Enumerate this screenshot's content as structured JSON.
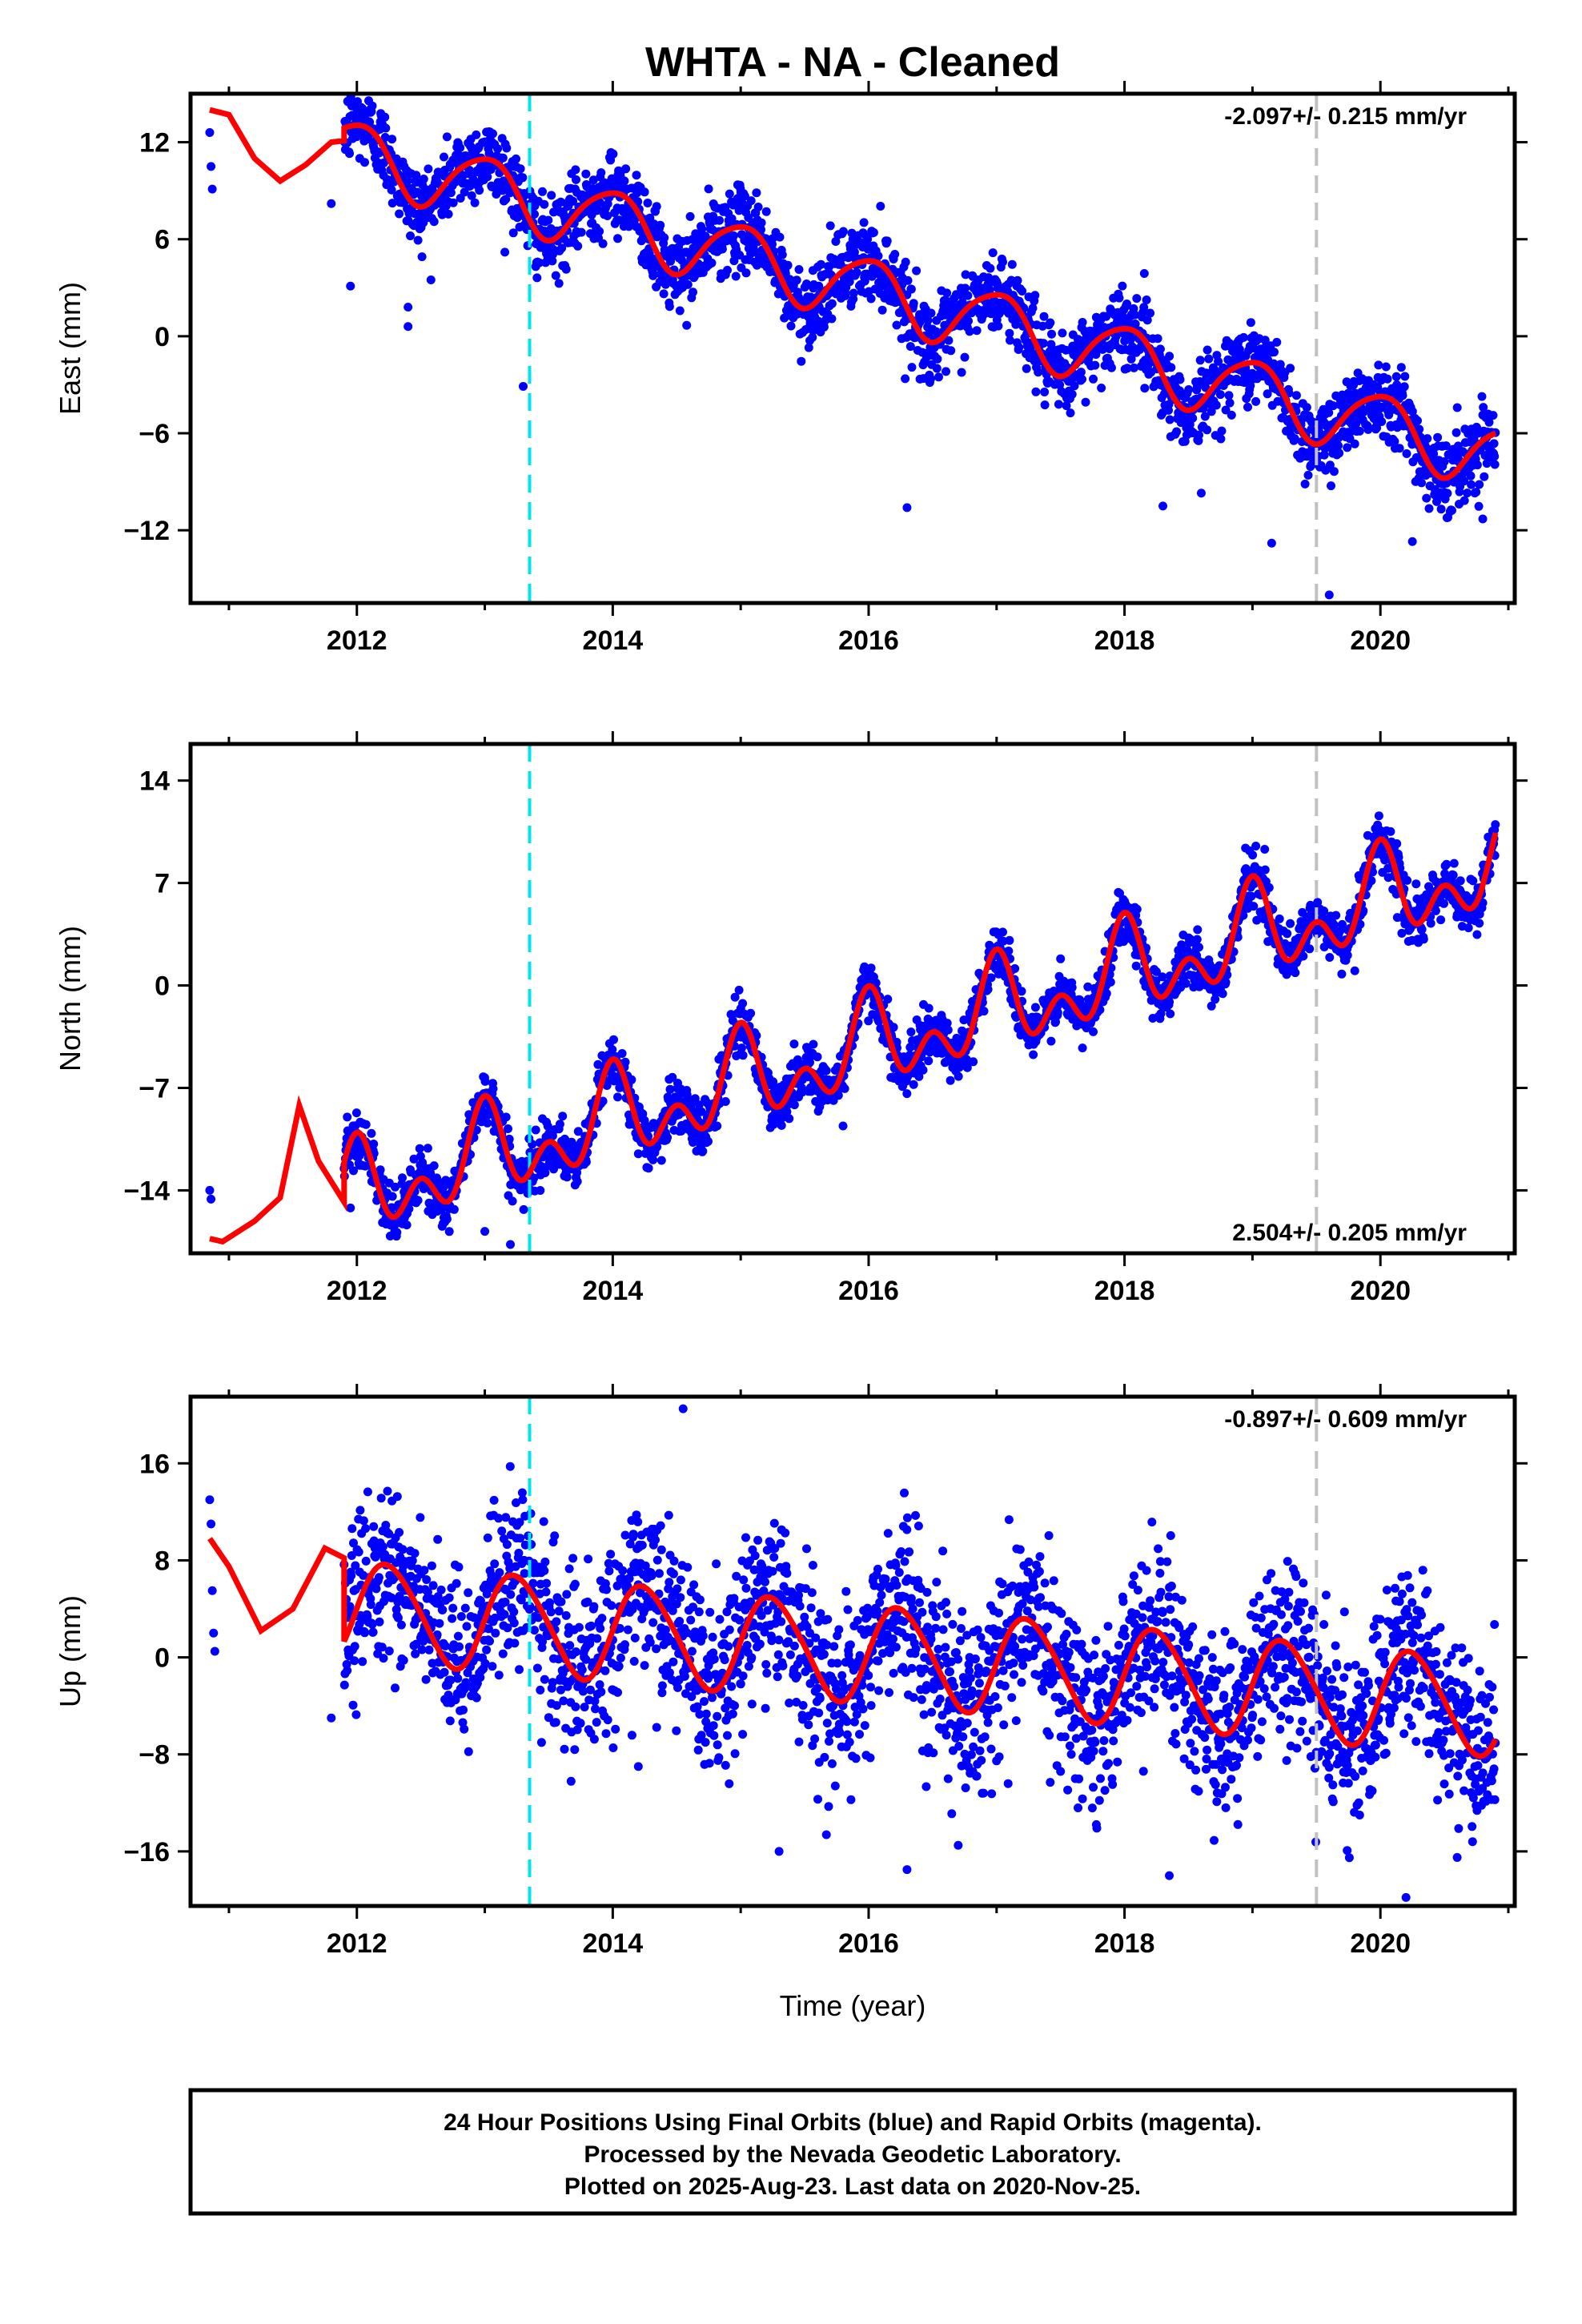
{
  "title": "WHTA  - NA - Cleaned",
  "xlabel": "Time (year)",
  "colors": {
    "points": "#0000ff",
    "fit": "#ff0000",
    "event_cyan": "#00e5ee",
    "event_gray": "#c0c0c0"
  },
  "caption": [
    "24 Hour Positions Using Final Orbits (blue) and Rapid Orbits (magenta).",
    "Processed by the Nevada Geodetic Laboratory.",
    "Plotted on 2025-Aug-23. Last data on 2020-Nov-25."
  ],
  "chart_data": [
    {
      "type": "scatter",
      "component": "east",
      "ylabel": "East (mm)",
      "rate_label": "-2.097+/- 0.215 mm/yr",
      "rate_position": "top-right",
      "xlim": [
        2010.7,
        2021.05
      ],
      "ylim": [
        -16.5,
        15.0
      ],
      "xticks": [
        2012,
        2014,
        2016,
        2018,
        2020
      ],
      "yticks": [
        12,
        6,
        0,
        -6,
        -12
      ],
      "xtick_labels": [
        "2012",
        "2014",
        "2016",
        "2018",
        "2020"
      ],
      "ytick_labels": [
        "12",
        "6",
        "0",
        "−6",
        "−12"
      ],
      "events": [
        {
          "x": 2013.35,
          "color": "cyan",
          "style": "dashed"
        },
        {
          "x": 2019.5,
          "color": "gray",
          "style": "dashed"
        }
      ],
      "model": {
        "start": 2011.9,
        "offset": 11.5,
        "rate": -2.097,
        "amp1": 2.0,
        "phase1": 0.0,
        "amp2": 0.3,
        "phase2": 0.2,
        "early": [
          [
            2010.85,
            14.0
          ],
          [
            2011.0,
            13.7
          ],
          [
            2011.2,
            11.0
          ],
          [
            2011.4,
            9.6
          ],
          [
            2011.6,
            10.6
          ],
          [
            2011.8,
            12.0
          ],
          [
            2011.9,
            12.1
          ]
        ]
      },
      "scatter": 1.2,
      "outliers": [
        [
          2010.85,
          12.6
        ],
        [
          2010.86,
          10.5
        ],
        [
          2010.87,
          9.1
        ],
        [
          2011.8,
          8.2
        ],
        [
          2011.95,
          3.1
        ],
        [
          2012.4,
          0.6
        ],
        [
          2012.4,
          1.8
        ],
        [
          2013.3,
          -3.1
        ],
        [
          2016.3,
          -10.6
        ],
        [
          2019.6,
          -16.0
        ],
        [
          2019.15,
          -12.8
        ],
        [
          2020.8,
          -11.3
        ],
        [
          2020.25,
          -12.7
        ],
        [
          2018.3,
          -10.5
        ],
        [
          2018.6,
          -9.7
        ]
      ]
    },
    {
      "type": "scatter",
      "component": "north",
      "ylabel": "North (mm)",
      "rate_label": "2.504+/- 0.205 mm/yr",
      "rate_position": "bottom-right",
      "xlim": [
        2010.7,
        2021.05
      ],
      "ylim": [
        -18.3,
        16.5
      ],
      "xticks": [
        2012,
        2014,
        2016,
        2018,
        2020
      ],
      "yticks": [
        14,
        7,
        0,
        -7,
        -14
      ],
      "xtick_labels": [
        "2012",
        "2014",
        "2016",
        "2018",
        "2020"
      ],
      "ytick_labels": [
        "14",
        "7",
        "0",
        "−7",
        "−14"
      ],
      "events": [
        {
          "x": 2013.35,
          "color": "cyan",
          "style": "dashed"
        },
        {
          "x": 2019.5,
          "color": "gray",
          "style": "dashed"
        }
      ],
      "model": {
        "start": 2011.9,
        "offset": -14.5,
        "rate": 2.504,
        "amp1": 2.2,
        "phase1": 0.0,
        "amp2": 2.0,
        "phase2": 0.0,
        "early": [
          [
            2010.85,
            -17.3
          ],
          [
            2010.95,
            -17.5
          ],
          [
            2011.2,
            -16.1
          ],
          [
            2011.4,
            -14.5
          ],
          [
            2011.55,
            -8.2
          ],
          [
            2011.7,
            -12.0
          ],
          [
            2011.9,
            -14.8
          ]
        ]
      },
      "scatter": 0.9,
      "outliers": [
        [
          2010.85,
          -14.0
        ],
        [
          2010.86,
          -14.6
        ],
        [
          2011.95,
          -15.2
        ],
        [
          2012.2,
          -16.2
        ],
        [
          2013.0,
          -16.8
        ],
        [
          2013.2,
          -17.7
        ],
        [
          2015.8,
          -9.6
        ],
        [
          2019.8,
          1.0
        ],
        [
          2014.2,
          -11.5
        ]
      ]
    },
    {
      "type": "scatter",
      "component": "up",
      "ylabel": "Up (mm)",
      "rate_label": "-0.897+/- 0.609 mm/yr",
      "rate_position": "top-right",
      "xlim": [
        2010.7,
        2021.05
      ],
      "ylim": [
        -20.5,
        21.5
      ],
      "xticks": [
        2012,
        2014,
        2016,
        2018,
        2020
      ],
      "yticks": [
        16,
        8,
        0,
        -8,
        -16
      ],
      "xtick_labels": [
        "2012",
        "2014",
        "2016",
        "2018",
        "2020"
      ],
      "ytick_labels": [
        "16",
        "8",
        "0",
        "−8",
        "−16"
      ],
      "events": [
        {
          "x": 2013.35,
          "color": "cyan",
          "style": "dashed"
        },
        {
          "x": 2019.5,
          "color": "gray",
          "style": "dashed"
        }
      ],
      "model": {
        "start": 2011.9,
        "offset": 4.0,
        "rate": -0.897,
        "amp1": 4.0,
        "phase1": 0.25,
        "amp2": 0.4,
        "phase2": 0.1,
        "early": [
          [
            2010.85,
            9.8
          ],
          [
            2011.0,
            7.5
          ],
          [
            2011.25,
            2.2
          ],
          [
            2011.5,
            4.0
          ],
          [
            2011.75,
            9.0
          ],
          [
            2011.9,
            8.2
          ]
        ]
      },
      "scatter": 3.5,
      "outliers": [
        [
          2010.85,
          13.0
        ],
        [
          2010.86,
          11.0
        ],
        [
          2010.87,
          5.5
        ],
        [
          2010.88,
          2.0
        ],
        [
          2010.89,
          0.5
        ],
        [
          2011.8,
          -5.0
        ],
        [
          2014.55,
          20.5
        ],
        [
          2014.2,
          -9.0
        ],
        [
          2016.3,
          -17.5
        ],
        [
          2018.35,
          -18.0
        ],
        [
          2020.2,
          -19.8
        ],
        [
          2015.3,
          -16.0
        ],
        [
          2016.7,
          -15.5
        ],
        [
          2020.6,
          -16.5
        ]
      ]
    }
  ]
}
